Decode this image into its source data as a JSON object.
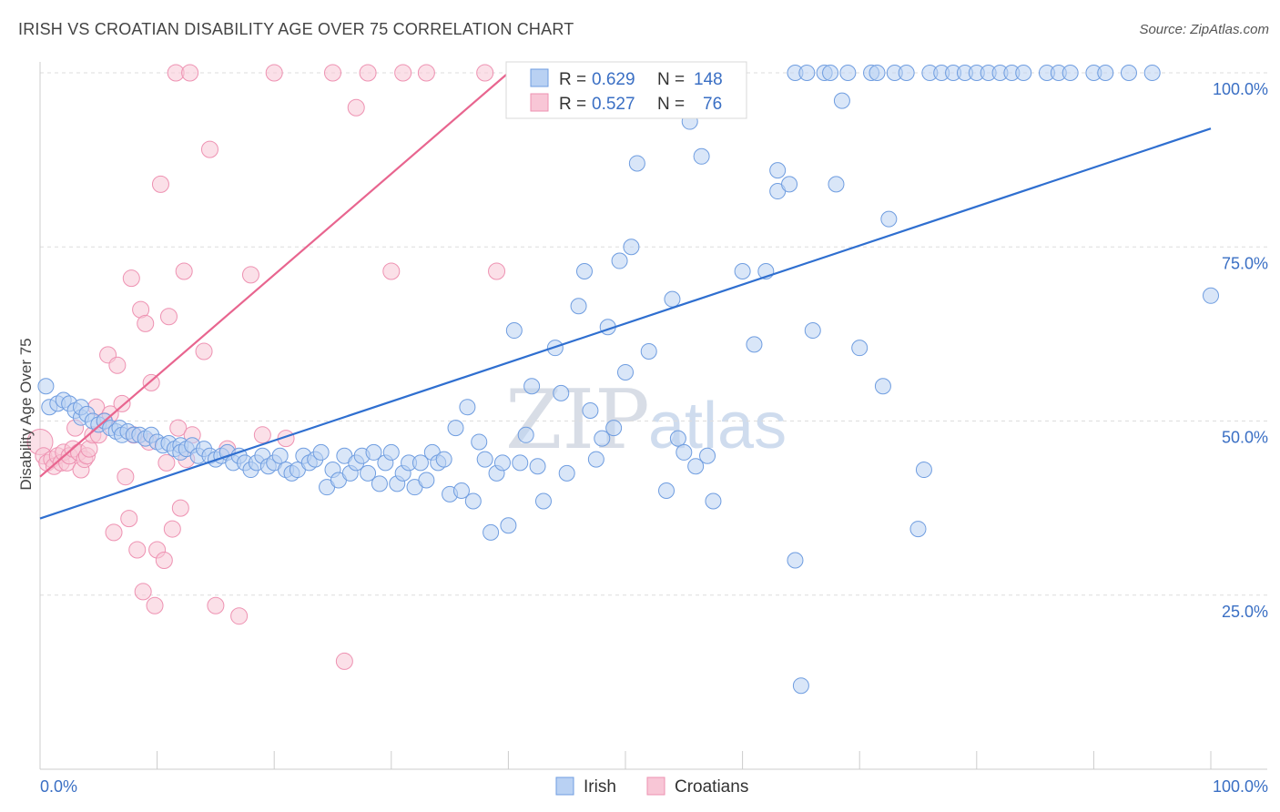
{
  "header": {
    "title": "IRISH VS CROATIAN DISABILITY AGE OVER 75 CORRELATION CHART",
    "source": "Source: ZipAtlas.com"
  },
  "watermark": {
    "zip": "ZIP",
    "atlas": "atlas"
  },
  "legend_top": {
    "rows": [
      {
        "r_label": "R =",
        "r_value": "0.629",
        "n_label": "N =",
        "n_value": "148",
        "color": "#8fb5ec"
      },
      {
        "r_label": "R =",
        "r_value": "0.527",
        "n_label": "N =",
        "n_value": "76",
        "color": "#f4a6c0"
      }
    ]
  },
  "legend_bottom": {
    "items": [
      {
        "label": "Irish",
        "color": "#8fb5ec"
      },
      {
        "label": "Croatians",
        "color": "#f4a6c0"
      }
    ]
  },
  "chart_data": {
    "type": "scatter",
    "title": "IRISH VS CROATIAN DISABILITY AGE OVER 75 CORRELATION CHART",
    "xlabel": "",
    "ylabel": "Disability Age Over 75",
    "xlim": [
      0,
      100
    ],
    "ylim": [
      0,
      105
    ],
    "x_tick_labels": [
      "0.0%",
      "100.0%"
    ],
    "y_ticks": [
      25,
      50,
      75,
      100
    ],
    "y_tick_labels": [
      "25.0%",
      "50.0%",
      "75.0%",
      "100.0%"
    ],
    "grid": true,
    "colors": {
      "irish_fill": "#b9d1f3",
      "irish_stroke": "#6f9de0",
      "irish_line": "#2f6fd0",
      "croat_fill": "#f8c6d6",
      "croat_stroke": "#ee92b2",
      "croat_line": "#e8658f"
    },
    "series": [
      {
        "name": "Irish",
        "trendline": [
          [
            0,
            36
          ],
          [
            100,
            92
          ]
        ],
        "points": [
          [
            0.5,
            55
          ],
          [
            0.8,
            52
          ],
          [
            1.5,
            52.5
          ],
          [
            2,
            53
          ],
          [
            2.5,
            52.5
          ],
          [
            3,
            51.5
          ],
          [
            3.5,
            50.5
          ],
          [
            3.5,
            52
          ],
          [
            4,
            51
          ],
          [
            4.5,
            50
          ],
          [
            5,
            49.5
          ],
          [
            5.5,
            50
          ],
          [
            6,
            49
          ],
          [
            6.5,
            48.5
          ],
          [
            6.8,
            49
          ],
          [
            7,
            48
          ],
          [
            7.5,
            48.5
          ],
          [
            8,
            48
          ],
          [
            8.5,
            48
          ],
          [
            9,
            47.5
          ],
          [
            9.5,
            48
          ],
          [
            10,
            47
          ],
          [
            10.5,
            46.5
          ],
          [
            11,
            46.8
          ],
          [
            11.5,
            46
          ],
          [
            12,
            46.5
          ],
          [
            12,
            45.5
          ],
          [
            12.5,
            46
          ],
          [
            13,
            46.5
          ],
          [
            13.5,
            45
          ],
          [
            14,
            46
          ],
          [
            14.5,
            45
          ],
          [
            15,
            44.5
          ],
          [
            15.5,
            45
          ],
          [
            16,
            45.5
          ],
          [
            16.5,
            44
          ],
          [
            17,
            45
          ],
          [
            17.5,
            44
          ],
          [
            18,
            43
          ],
          [
            18.5,
            44
          ],
          [
            19,
            45
          ],
          [
            19.5,
            43.5
          ],
          [
            20,
            44
          ],
          [
            20.5,
            45
          ],
          [
            21,
            43
          ],
          [
            21.5,
            42.5
          ],
          [
            22,
            43
          ],
          [
            22.5,
            45
          ],
          [
            23,
            44
          ],
          [
            23.5,
            44.5
          ],
          [
            24,
            45.5
          ],
          [
            24.5,
            40.5
          ],
          [
            25,
            43
          ],
          [
            25.5,
            41.5
          ],
          [
            26,
            45
          ],
          [
            26.5,
            42.5
          ],
          [
            27,
            44
          ],
          [
            27.5,
            45
          ],
          [
            28,
            42.5
          ],
          [
            28.5,
            45.5
          ],
          [
            29,
            41
          ],
          [
            29.5,
            44
          ],
          [
            30,
            45.5
          ],
          [
            30.5,
            41
          ],
          [
            31,
            42.5
          ],
          [
            31.5,
            44
          ],
          [
            32,
            40.5
          ],
          [
            32.5,
            44
          ],
          [
            33,
            41.5
          ],
          [
            33.5,
            45.5
          ],
          [
            34,
            44
          ],
          [
            34.5,
            44.5
          ],
          [
            35,
            39.5
          ],
          [
            35.5,
            49
          ],
          [
            36,
            40
          ],
          [
            36.5,
            52
          ],
          [
            37,
            38.5
          ],
          [
            37.5,
            47
          ],
          [
            38,
            44.5
          ],
          [
            38.5,
            34
          ],
          [
            39,
            42.5
          ],
          [
            39.5,
            44
          ],
          [
            40,
            35
          ],
          [
            40.5,
            63
          ],
          [
            41,
            44
          ],
          [
            41.5,
            48
          ],
          [
            42,
            55
          ],
          [
            42.5,
            43.5
          ],
          [
            43,
            38.5
          ],
          [
            44,
            60.5
          ],
          [
            44.5,
            54
          ],
          [
            45,
            42.5
          ],
          [
            46,
            66.5
          ],
          [
            46.5,
            71.5
          ],
          [
            47,
            51.5
          ],
          [
            47.5,
            44.5
          ],
          [
            48,
            47.5
          ],
          [
            48.5,
            63.5
          ],
          [
            49,
            49
          ],
          [
            49.5,
            73
          ],
          [
            50,
            57
          ],
          [
            50.5,
            75
          ],
          [
            51,
            87
          ],
          [
            52,
            60
          ],
          [
            53,
            100
          ],
          [
            53.5,
            40
          ],
          [
            54,
            67.5
          ],
          [
            54.5,
            47.5
          ],
          [
            55,
            45.5
          ],
          [
            55.5,
            93
          ],
          [
            56,
            43.5
          ],
          [
            56.5,
            88
          ],
          [
            57,
            45
          ],
          [
            57.5,
            38.5
          ],
          [
            58,
            100
          ],
          [
            60,
            71.5
          ],
          [
            61,
            61
          ],
          [
            62,
            71.5
          ],
          [
            63,
            86
          ],
          [
            63,
            83
          ],
          [
            64,
            84
          ],
          [
            64.5,
            100
          ],
          [
            64.5,
            30
          ],
          [
            65,
            12
          ],
          [
            65.5,
            100
          ],
          [
            66,
            63
          ],
          [
            67,
            100
          ],
          [
            67.5,
            100
          ],
          [
            68,
            84
          ],
          [
            68.5,
            96
          ],
          [
            69,
            100
          ],
          [
            70,
            60.5
          ],
          [
            71,
            100
          ],
          [
            71.5,
            100
          ],
          [
            72,
            55
          ],
          [
            72.5,
            79
          ],
          [
            73,
            100
          ],
          [
            74,
            100
          ],
          [
            75,
            34.5
          ],
          [
            75.5,
            43
          ],
          [
            76,
            100
          ],
          [
            77,
            100
          ],
          [
            78,
            100
          ],
          [
            79,
            100
          ],
          [
            80,
            100
          ],
          [
            81,
            100
          ],
          [
            82,
            100
          ],
          [
            83,
            100
          ],
          [
            84,
            100
          ],
          [
            86,
            100
          ],
          [
            87,
            100
          ],
          [
            88,
            100
          ],
          [
            90,
            100
          ],
          [
            91,
            100
          ],
          [
            93,
            100
          ],
          [
            95,
            100
          ],
          [
            100,
            68
          ]
        ]
      },
      {
        "name": "Croatians",
        "trendline": [
          [
            0,
            42
          ],
          [
            40,
            100
          ]
        ],
        "points": [
          [
            0,
            47
          ],
          [
            0.3,
            45
          ],
          [
            0.6,
            44
          ],
          [
            1,
            44.5
          ],
          [
            1.2,
            43.5
          ],
          [
            1.5,
            45
          ],
          [
            1.8,
            44
          ],
          [
            2,
            45.5
          ],
          [
            2.3,
            44
          ],
          [
            2.5,
            45
          ],
          [
            2.8,
            46
          ],
          [
            3,
            49
          ],
          [
            3.3,
            45.5
          ],
          [
            3.5,
            43
          ],
          [
            3.8,
            44.5
          ],
          [
            4,
            45
          ],
          [
            4.2,
            46
          ],
          [
            4.5,
            48
          ],
          [
            4.8,
            52
          ],
          [
            5,
            48
          ],
          [
            5.5,
            50
          ],
          [
            5.8,
            59.5
          ],
          [
            6,
            51
          ],
          [
            6.3,
            34
          ],
          [
            6.6,
            58
          ],
          [
            7,
            52.5
          ],
          [
            7.3,
            42
          ],
          [
            7.6,
            36
          ],
          [
            7.8,
            70.5
          ],
          [
            8,
            48
          ],
          [
            8.3,
            31.5
          ],
          [
            8.6,
            66
          ],
          [
            8.8,
            25.5
          ],
          [
            9,
            64
          ],
          [
            9.3,
            47
          ],
          [
            9.5,
            55.5
          ],
          [
            9.8,
            23.5
          ],
          [
            10,
            31.5
          ],
          [
            10.3,
            84
          ],
          [
            10.6,
            30
          ],
          [
            10.8,
            44
          ],
          [
            11,
            65
          ],
          [
            11.3,
            34.5
          ],
          [
            11.6,
            100
          ],
          [
            11.8,
            49
          ],
          [
            12,
            37.5
          ],
          [
            12.3,
            71.5
          ],
          [
            12.5,
            44.5
          ],
          [
            12.8,
            100
          ],
          [
            13,
            48
          ],
          [
            14,
            60
          ],
          [
            14.5,
            89
          ],
          [
            15,
            23.5
          ],
          [
            16,
            46
          ],
          [
            17,
            22
          ],
          [
            18,
            71
          ],
          [
            19,
            48
          ],
          [
            20,
            100
          ],
          [
            21,
            47.5
          ],
          [
            25,
            100
          ],
          [
            26,
            15.5
          ],
          [
            27,
            95
          ],
          [
            28,
            100
          ],
          [
            30,
            71.5
          ],
          [
            31,
            100
          ],
          [
            33,
            100
          ],
          [
            38,
            100
          ],
          [
            39,
            71.5
          ]
        ]
      }
    ]
  }
}
